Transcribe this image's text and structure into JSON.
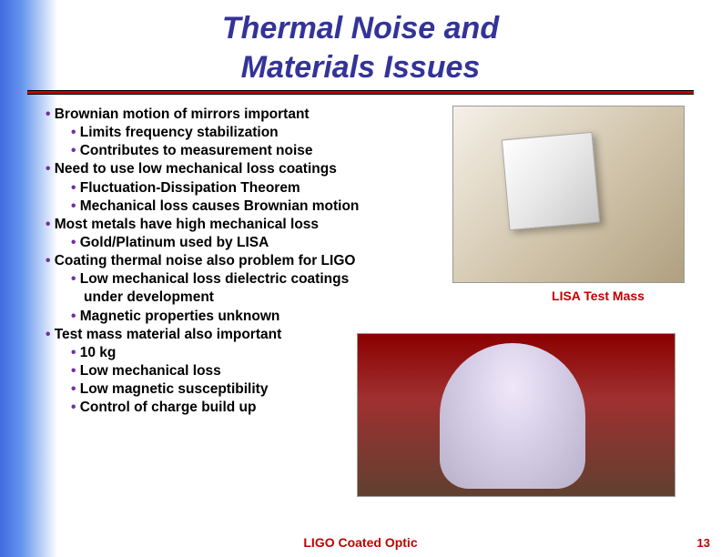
{
  "title_line1": "Thermal Noise and",
  "title_line2": "Materials Issues",
  "bullets": [
    {
      "lvl": 0,
      "text": "Brownian motion of mirrors important"
    },
    {
      "lvl": 1,
      "text": "Limits frequency stabilization"
    },
    {
      "lvl": 1,
      "text": "Contributes to measurement noise"
    },
    {
      "lvl": 0,
      "text": "Need to use low mechanical loss coatings"
    },
    {
      "lvl": 1,
      "text": "Fluctuation-Dissipation Theorem"
    },
    {
      "lvl": 1,
      "text": "Mechanical loss causes Brownian motion"
    },
    {
      "lvl": 0,
      "text": "Most metals have high mechanical loss"
    },
    {
      "lvl": 1,
      "text": "Gold/Platinum used by LISA"
    },
    {
      "lvl": 0,
      "text": "Coating thermal noise also problem for LIGO"
    },
    {
      "lvl": 1,
      "text": "Low mechanical loss dielectric coatings"
    },
    {
      "lvl": 1,
      "text": "under development",
      "cont": true
    },
    {
      "lvl": 1,
      "text": "Magnetic properties unknown"
    },
    {
      "lvl": 0,
      "text": "Test mass material also important"
    },
    {
      "lvl": 1,
      "text": "10 kg"
    },
    {
      "lvl": 1,
      "text": "Low mechanical loss"
    },
    {
      "lvl": 1,
      "text": "Low magnetic susceptibility"
    },
    {
      "lvl": 1,
      "text": "Control of charge build up"
    }
  ],
  "caption1": "LISA Test Mass",
  "caption2": "LIGO Coated Optic",
  "page_number": "13",
  "colors": {
    "title": "#333399",
    "underline": "#c00000",
    "bullet_marker": "#7030a0",
    "caption": "#c00000",
    "pagenum": "#c00000",
    "gradient_left": "#4169E1"
  }
}
